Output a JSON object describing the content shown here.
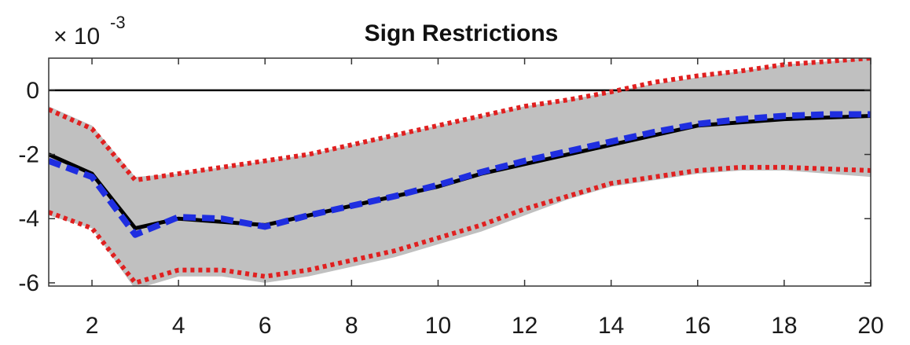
{
  "chart_data": {
    "type": "line",
    "title": "Sign Restrictions",
    "scale_factor": {
      "base": "× 10",
      "exponent": "-3"
    },
    "xlim": [
      1,
      20
    ],
    "ylim": [
      -6.1,
      1.0
    ],
    "x_ticks": [
      2,
      4,
      6,
      8,
      10,
      12,
      14,
      16,
      18,
      20
    ],
    "x_tick_labels": [
      "2",
      "4",
      "6",
      "8",
      "10",
      "12",
      "14",
      "16",
      "18",
      "20"
    ],
    "y_ticks": [
      0,
      -2,
      -4,
      -6
    ],
    "y_tick_labels": [
      "0",
      "-2",
      "-4",
      "-6"
    ],
    "zero_line": 0,
    "grid": false,
    "x": [
      1,
      2,
      3,
      4,
      5,
      6,
      7,
      8,
      9,
      10,
      11,
      12,
      13,
      14,
      15,
      16,
      17,
      18,
      19,
      20
    ],
    "band": {
      "upper": [
        -0.5,
        -1.1,
        -2.7,
        -2.6,
        -2.4,
        -2.2,
        -2.0,
        -1.7,
        -1.4,
        -1.1,
        -0.8,
        -0.5,
        -0.3,
        -0.05,
        0.2,
        0.4,
        0.6,
        0.8,
        0.9,
        1.0
      ],
      "lower": [
        -3.9,
        -4.3,
        -6.2,
        -5.8,
        -5.8,
        -6.0,
        -5.8,
        -5.5,
        -5.2,
        -4.8,
        -4.4,
        -3.9,
        -3.4,
        -3.0,
        -2.8,
        -2.6,
        -2.5,
        -2.5,
        -2.6,
        -2.7
      ],
      "color": "#c0c0c0"
    },
    "series": [
      {
        "values": [
          -2.0,
          -2.6,
          -4.3,
          -4.0,
          -4.1,
          -4.2,
          -3.9,
          -3.6,
          -3.3,
          -3.0,
          -2.6,
          -2.3,
          -2.0,
          -1.7,
          -1.4,
          -1.1,
          -1.0,
          -0.9,
          -0.85,
          -0.8
        ],
        "color": "#000000",
        "style": "solid"
      },
      {
        "values": [
          -2.2,
          -2.7,
          -4.5,
          -3.95,
          -4.0,
          -4.25,
          -3.9,
          -3.6,
          -3.3,
          -2.95,
          -2.55,
          -2.2,
          -1.9,
          -1.6,
          -1.3,
          -1.05,
          -0.9,
          -0.8,
          -0.75,
          -0.75
        ],
        "color": "#1f2ee0",
        "style": "dashed"
      },
      {
        "values": [
          -0.6,
          -1.2,
          -2.8,
          -2.6,
          -2.4,
          -2.2,
          -2.0,
          -1.7,
          -1.4,
          -1.1,
          -0.8,
          -0.5,
          -0.3,
          -0.05,
          0.25,
          0.45,
          0.6,
          0.8,
          0.9,
          1.0
        ],
        "color": "#e02020",
        "style": "dotted"
      },
      {
        "values": [
          -3.8,
          -4.3,
          -6.0,
          -5.6,
          -5.6,
          -5.8,
          -5.6,
          -5.3,
          -5.0,
          -4.6,
          -4.2,
          -3.7,
          -3.3,
          -2.9,
          -2.7,
          -2.5,
          -2.4,
          -2.4,
          -2.45,
          -2.5
        ],
        "color": "#e02020",
        "style": "dotted"
      }
    ]
  }
}
